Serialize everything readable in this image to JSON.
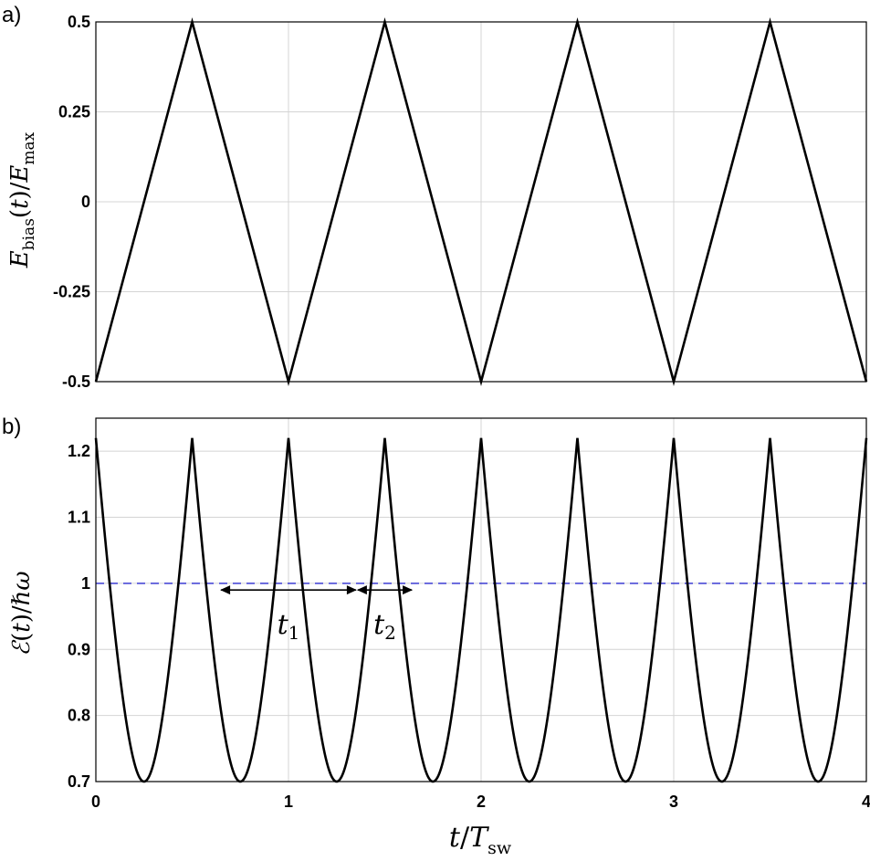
{
  "chart_data": [
    {
      "panel": "a)",
      "type": "line",
      "xlim": [
        0,
        4
      ],
      "ylim": [
        -0.5,
        0.5
      ],
      "xticks": [
        0,
        1,
        2,
        3,
        4
      ],
      "xtick_labels_shown": false,
      "yticks": [
        -0.5,
        -0.25,
        0,
        0.25,
        0.5
      ],
      "ytick_labels": [
        "-0.5",
        "-0.25",
        "0",
        "0.25",
        "0.5"
      ],
      "ylabel": "E_bias(t)/E_max",
      "grid": true,
      "series": [
        {
          "color": "#000000",
          "x": [
            0,
            0.5,
            1,
            1.5,
            2,
            2.5,
            3,
            3.5,
            4
          ],
          "y": [
            -0.5,
            0.5,
            -0.5,
            0.5,
            -0.5,
            0.5,
            -0.5,
            0.5,
            -0.5
          ]
        }
      ]
    },
    {
      "panel": "b)",
      "type": "line",
      "xlim": [
        0,
        4
      ],
      "ylim": [
        0.7,
        1.25
      ],
      "xticks": [
        0,
        1,
        2,
        3,
        4
      ],
      "xtick_labels": [
        "0",
        "1",
        "2",
        "3",
        "4"
      ],
      "yticks": [
        0.7,
        0.8,
        0.9,
        1.0,
        1.1,
        1.2
      ],
      "ytick_labels": [
        "0.7",
        "0.8",
        "0.9",
        "1",
        "1.1",
        "1.2"
      ],
      "xlabel": "t/T_sw",
      "ylabel": "ℰ(t)/ℏω",
      "grid": true,
      "curve_min": 0.7,
      "curve_max": 1.22,
      "curve_form": "sqrt(min^2 + (max^2 - min^2) * (2*E_bias)^2) with E_bias from panel a",
      "reference_line": {
        "y": 1.0,
        "color": "#2b2bd0",
        "style": "dashed"
      },
      "annotations": [
        {
          "label": "t1",
          "from_x": 0.645,
          "to_x": 1.355,
          "y": 0.99
        },
        {
          "label": "t2",
          "from_x": 1.355,
          "to_x": 1.645,
          "y": 0.99
        }
      ]
    }
  ]
}
